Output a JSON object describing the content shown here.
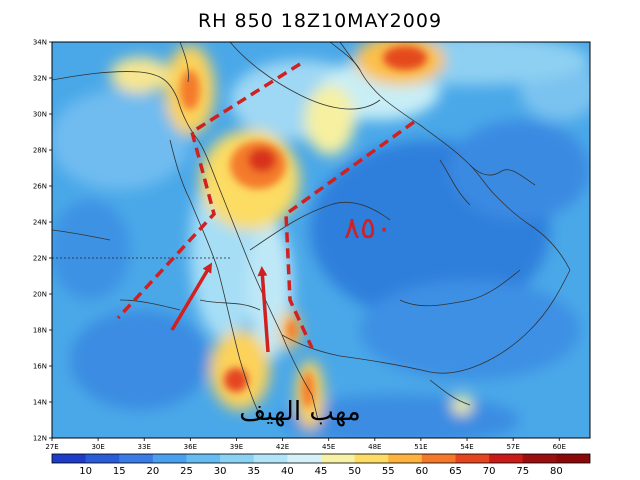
{
  "title": "RH 850  18Z10MAY2009",
  "map": {
    "lon_range": [
      27,
      62
    ],
    "lat_range": [
      12,
      34
    ],
    "lon_ticks": [
      "27E",
      "30E",
      "33E",
      "36E",
      "39E",
      "42E",
      "45E",
      "48E",
      "51E",
      "54E",
      "57E",
      "60E"
    ],
    "lat_ticks": [
      "34N",
      "32N",
      "30N",
      "28N",
      "26N",
      "24N",
      "22N",
      "20N",
      "18N",
      "16N",
      "14N",
      "12N"
    ],
    "background_color": "#4aa8e8"
  },
  "annotations": {
    "level_text": "٨٥٠",
    "caption_text": "مهب الهيف",
    "annotation_color": "#d02020",
    "caption_color": "#000000"
  },
  "colorbar": {
    "labels": [
      "10",
      "15",
      "20",
      "25",
      "30",
      "35",
      "40",
      "45",
      "50",
      "55",
      "60",
      "65",
      "70",
      "75",
      "80"
    ],
    "colors": [
      "#1e3cc8",
      "#2a5cd8",
      "#3a7ce6",
      "#4aa0ee",
      "#66bcf2",
      "#8ad2f4",
      "#b0e4f6",
      "#d6f2f8",
      "#f6f2a8",
      "#fcdc64",
      "#fcb23c",
      "#f4782a",
      "#e44420",
      "#c81a18",
      "#9a0e10"
    ]
  }
}
